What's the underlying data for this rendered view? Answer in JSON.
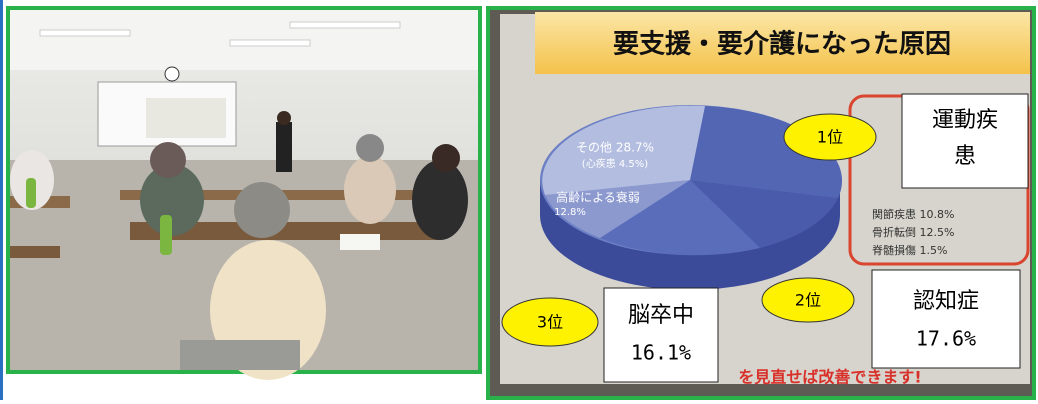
{
  "slide": {
    "title": "要支援・要介護になった原因",
    "pie_labels": [
      "その他 28.7%",
      "(心疾患 4.5%)",
      "高齢による衰弱",
      "12.8%"
    ],
    "breakdown": [
      "関節疾患 10.8%",
      "骨折転倒 12.5%",
      "脊髄損傷 1.5%"
    ],
    "footer": "を見直せば改善できます!"
  },
  "callouts": [
    {
      "rank": "1位",
      "label": "運動疾",
      "label2": "患"
    },
    {
      "rank": "2位",
      "label": "認知症",
      "value": "17.6%"
    },
    {
      "rank": "3位",
      "label": "脳卒中",
      "value": "16.1%"
    }
  ]
}
